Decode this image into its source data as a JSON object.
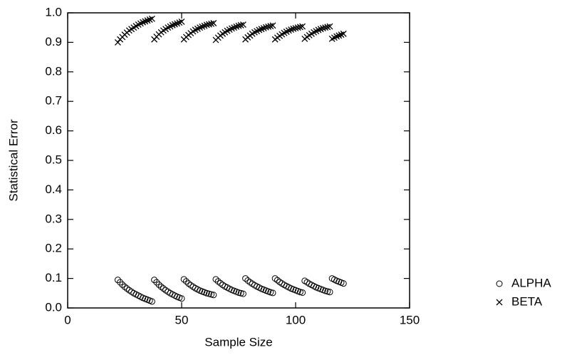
{
  "chart_data": {
    "type": "scatter",
    "xlabel": "Sample Size",
    "ylabel": "Statistical Error",
    "xlim": [
      0,
      150
    ],
    "ylim": [
      0,
      1
    ],
    "xticks": [
      0,
      50,
      100,
      150
    ],
    "yticks": [
      {
        "value": 0,
        "label": "0.0"
      },
      0.1,
      0.2,
      0.3,
      0.4,
      0.5,
      0.6,
      0.7,
      0.8,
      0.9,
      {
        "value": 1,
        "label": "1.0"
      }
    ],
    "x": [
      22,
      23,
      24,
      25,
      26,
      27,
      28,
      29,
      30,
      31,
      32,
      33,
      34,
      35,
      36,
      37,
      38,
      39,
      40,
      41,
      42,
      43,
      44,
      45,
      46,
      47,
      48,
      49,
      50,
      51,
      52,
      53,
      54,
      55,
      56,
      57,
      58,
      59,
      60,
      61,
      62,
      63,
      64,
      65,
      66,
      67,
      68,
      69,
      70,
      71,
      72,
      73,
      74,
      75,
      76,
      77,
      78,
      79,
      80,
      81,
      82,
      83,
      84,
      85,
      86,
      87,
      88,
      89,
      90,
      91,
      92,
      93,
      94,
      95,
      96,
      97,
      98,
      99,
      100,
      101,
      102,
      103,
      104,
      105,
      106,
      107,
      108,
      109,
      110,
      111,
      112,
      113,
      114,
      115,
      116,
      117,
      118,
      119,
      120,
      121
    ],
    "series": [
      {
        "name": "ALPHA",
        "color": "#000000",
        "marker": "o",
        "values": [
          0.095,
          0.087,
          0.079,
          0.072,
          0.066,
          0.06,
          0.055,
          0.05,
          0.046,
          0.042,
          0.038,
          0.034,
          0.031,
          0.028,
          0.025,
          0.022,
          0.095,
          0.087,
          0.079,
          0.072,
          0.066,
          0.06,
          0.055,
          0.05,
          0.046,
          0.042,
          0.038,
          0.035,
          0.032,
          0.097,
          0.09,
          0.083,
          0.077,
          0.072,
          0.067,
          0.063,
          0.059,
          0.056,
          0.053,
          0.05,
          0.048,
          0.046,
          0.044,
          0.097,
          0.09,
          0.084,
          0.078,
          0.073,
          0.069,
          0.065,
          0.061,
          0.058,
          0.055,
          0.052,
          0.05,
          0.048,
          0.1,
          0.093,
          0.087,
          0.082,
          0.077,
          0.073,
          0.069,
          0.065,
          0.062,
          0.059,
          0.056,
          0.053,
          0.051,
          0.1,
          0.094,
          0.088,
          0.083,
          0.078,
          0.074,
          0.07,
          0.066,
          0.063,
          0.06,
          0.057,
          0.054,
          0.052,
          0.092,
          0.087,
          0.082,
          0.078,
          0.074,
          0.07,
          0.067,
          0.064,
          0.061,
          0.058,
          0.056,
          0.054,
          0.1,
          0.096,
          0.092,
          0.089,
          0.086,
          0.083
        ]
      },
      {
        "name": "BETA",
        "color": "#000000",
        "marker": "x",
        "values": [
          0.9,
          0.91,
          0.918,
          0.926,
          0.933,
          0.94,
          0.945,
          0.95,
          0.955,
          0.96,
          0.964,
          0.968,
          0.971,
          0.974,
          0.977,
          0.98,
          0.91,
          0.919,
          0.927,
          0.934,
          0.94,
          0.945,
          0.95,
          0.954,
          0.958,
          0.961,
          0.964,
          0.967,
          0.97,
          0.91,
          0.918,
          0.925,
          0.931,
          0.937,
          0.942,
          0.946,
          0.95,
          0.953,
          0.956,
          0.959,
          0.961,
          0.963,
          0.965,
          0.908,
          0.916,
          0.923,
          0.929,
          0.934,
          0.939,
          0.943,
          0.947,
          0.95,
          0.953,
          0.956,
          0.958,
          0.96,
          0.91,
          0.917,
          0.923,
          0.929,
          0.934,
          0.938,
          0.942,
          0.945,
          0.948,
          0.951,
          0.953,
          0.955,
          0.957,
          0.91,
          0.916,
          0.922,
          0.927,
          0.932,
          0.936,
          0.94,
          0.943,
          0.946,
          0.948,
          0.95,
          0.952,
          0.954,
          0.912,
          0.918,
          0.924,
          0.929,
          0.934,
          0.938,
          0.942,
          0.945,
          0.948,
          0.95,
          0.952,
          0.954,
          0.912,
          0.916,
          0.92,
          0.923,
          0.926,
          0.929
        ]
      }
    ],
    "legend": "right"
  }
}
